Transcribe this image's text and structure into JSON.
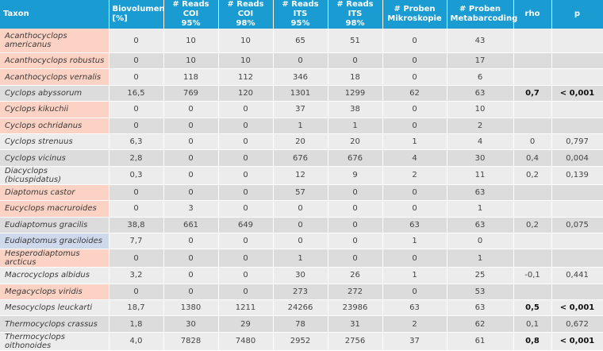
{
  "headers": {
    "taxon": "Taxon",
    "bio_1": "Biovolumen",
    "bio_2": "[%]",
    "coi95_1": "# Reads COI",
    "coi95_2": "95%",
    "coi98_1": "# Reads COI",
    "coi98_2": "98%",
    "its95_1": "# Reads ITS",
    "its95_2": "95%",
    "its98_1": "# Reads ITS",
    "its98_2": "98%",
    "mikro_1": "# Proben",
    "mikro_2": "Mikroskopie",
    "meta_1": "# Proben",
    "meta_2": "Metabarcoding",
    "rho": "rho",
    "p": "p"
  },
  "rows": [
    {
      "taxon": "Acanthocyclops americanus",
      "bio": "0",
      "coi95": "10",
      "coi98": "10",
      "its95": "65",
      "its98": "51",
      "mikro": "0",
      "meta": "43",
      "rho": "",
      "p": "",
      "highlight": "orange"
    },
    {
      "taxon": "Acanthocyclops robustus",
      "bio": "0",
      "coi95": "10",
      "coi98": "10",
      "its95": "0",
      "its98": "0",
      "mikro": "0",
      "meta": "17",
      "rho": "",
      "p": "",
      "highlight": "orange"
    },
    {
      "taxon": "Acanthocyclops vernalis",
      "bio": "0",
      "coi95": "118",
      "coi98": "112",
      "its95": "346",
      "its98": "18",
      "mikro": "0",
      "meta": "6",
      "rho": "",
      "p": "",
      "highlight": "orange"
    },
    {
      "taxon": "Cyclops abyssorum",
      "bio": "16,5",
      "coi95": "769",
      "coi98": "120",
      "its95": "1301",
      "its98": "1299",
      "mikro": "62",
      "meta": "63",
      "rho": "0,7",
      "p": "< 0,001",
      "highlight": "",
      "bold": true
    },
    {
      "taxon": "Cyclops kikuchii",
      "bio": "0",
      "coi95": "0",
      "coi98": "0",
      "its95": "37",
      "its98": "38",
      "mikro": "0",
      "meta": "10",
      "rho": "",
      "p": "",
      "highlight": "orange"
    },
    {
      "taxon": "Cyclops ochridanus",
      "bio": "0",
      "coi95": "0",
      "coi98": "0",
      "its95": "1",
      "its98": "1",
      "mikro": "0",
      "meta": "2",
      "rho": "",
      "p": "",
      "highlight": "orange"
    },
    {
      "taxon": "Cyclops strenuus",
      "bio": "6,3",
      "coi95": "0",
      "coi98": "0",
      "its95": "20",
      "its98": "20",
      "mikro": "1",
      "meta": "4",
      "rho": "0",
      "p": "0,797",
      "highlight": ""
    },
    {
      "taxon": "Cyclops vicinus",
      "bio": "2,8",
      "coi95": "0",
      "coi98": "0",
      "its95": "676",
      "its98": "676",
      "mikro": "4",
      "meta": "30",
      "rho": "0,4",
      "p": "0,004",
      "highlight": ""
    },
    {
      "taxon": "Diacyclops (bicuspidatus)",
      "bio": "0,3",
      "coi95": "0",
      "coi98": "0",
      "its95": "12",
      "its98": "9",
      "mikro": "2",
      "meta": "11",
      "rho": "0,2",
      "p": "0,139",
      "highlight": ""
    },
    {
      "taxon": "Diaptomus castor",
      "bio": "0",
      "coi95": "0",
      "coi98": "0",
      "its95": "57",
      "its98": "0",
      "mikro": "0",
      "meta": "63",
      "rho": "",
      "p": "",
      "highlight": "orange"
    },
    {
      "taxon": "Eucyclops macruroides",
      "bio": "0",
      "coi95": "3",
      "coi98": "0",
      "its95": "0",
      "its98": "0",
      "mikro": "0",
      "meta": "1",
      "rho": "",
      "p": "",
      "highlight": "orange"
    },
    {
      "taxon": "Eudiaptomus gracilis",
      "bio": "38,8",
      "coi95": "661",
      "coi98": "649",
      "its95": "0",
      "its98": "0",
      "mikro": "63",
      "meta": "63",
      "rho": "0,2",
      "p": "0,075",
      "highlight": ""
    },
    {
      "taxon": "Eudiaptomus graciloides",
      "bio": "7,7",
      "coi95": "0",
      "coi98": "0",
      "its95": "0",
      "its98": "0",
      "mikro": "1",
      "meta": "0",
      "rho": "",
      "p": "",
      "highlight": "blue"
    },
    {
      "taxon": "Hesperodiaptomus arcticus",
      "bio": "0",
      "coi95": "0",
      "coi98": "0",
      "its95": "1",
      "its98": "0",
      "mikro": "0",
      "meta": "1",
      "rho": "",
      "p": "",
      "highlight": "orange"
    },
    {
      "taxon": "Macrocyclops albidus",
      "bio": "3,2",
      "coi95": "0",
      "coi98": "0",
      "its95": "30",
      "its98": "26",
      "mikro": "1",
      "meta": "25",
      "rho": "-0,1",
      "p": "0,441",
      "highlight": ""
    },
    {
      "taxon": "Megacyclops viridis",
      "bio": "0",
      "coi95": "0",
      "coi98": "0",
      "its95": "273",
      "its98": "272",
      "mikro": "0",
      "meta": "53",
      "rho": "",
      "p": "",
      "highlight": "orange"
    },
    {
      "taxon": "Mesocyclops leuckarti",
      "bio": "18,7",
      "coi95": "1380",
      "coi98": "1211",
      "its95": "24266",
      "its98": "23986",
      "mikro": "63",
      "meta": "63",
      "rho": "0,5",
      "p": "< 0,001",
      "highlight": "",
      "bold": true
    },
    {
      "taxon": "Thermocyclops crassus",
      "bio": "1,8",
      "coi95": "30",
      "coi98": "29",
      "its95": "78",
      "its98": "31",
      "mikro": "2",
      "meta": "62",
      "rho": "0,1",
      "p": "0,672",
      "highlight": ""
    },
    {
      "taxon": "Thermocyclops oithonoides",
      "bio": "4,0",
      "coi95": "7828",
      "coi98": "7480",
      "its95": "2952",
      "its98": "2756",
      "mikro": "37",
      "meta": "61",
      "rho": "0,8",
      "p": "< 0,001",
      "highlight": "",
      "bold": true
    }
  ]
}
